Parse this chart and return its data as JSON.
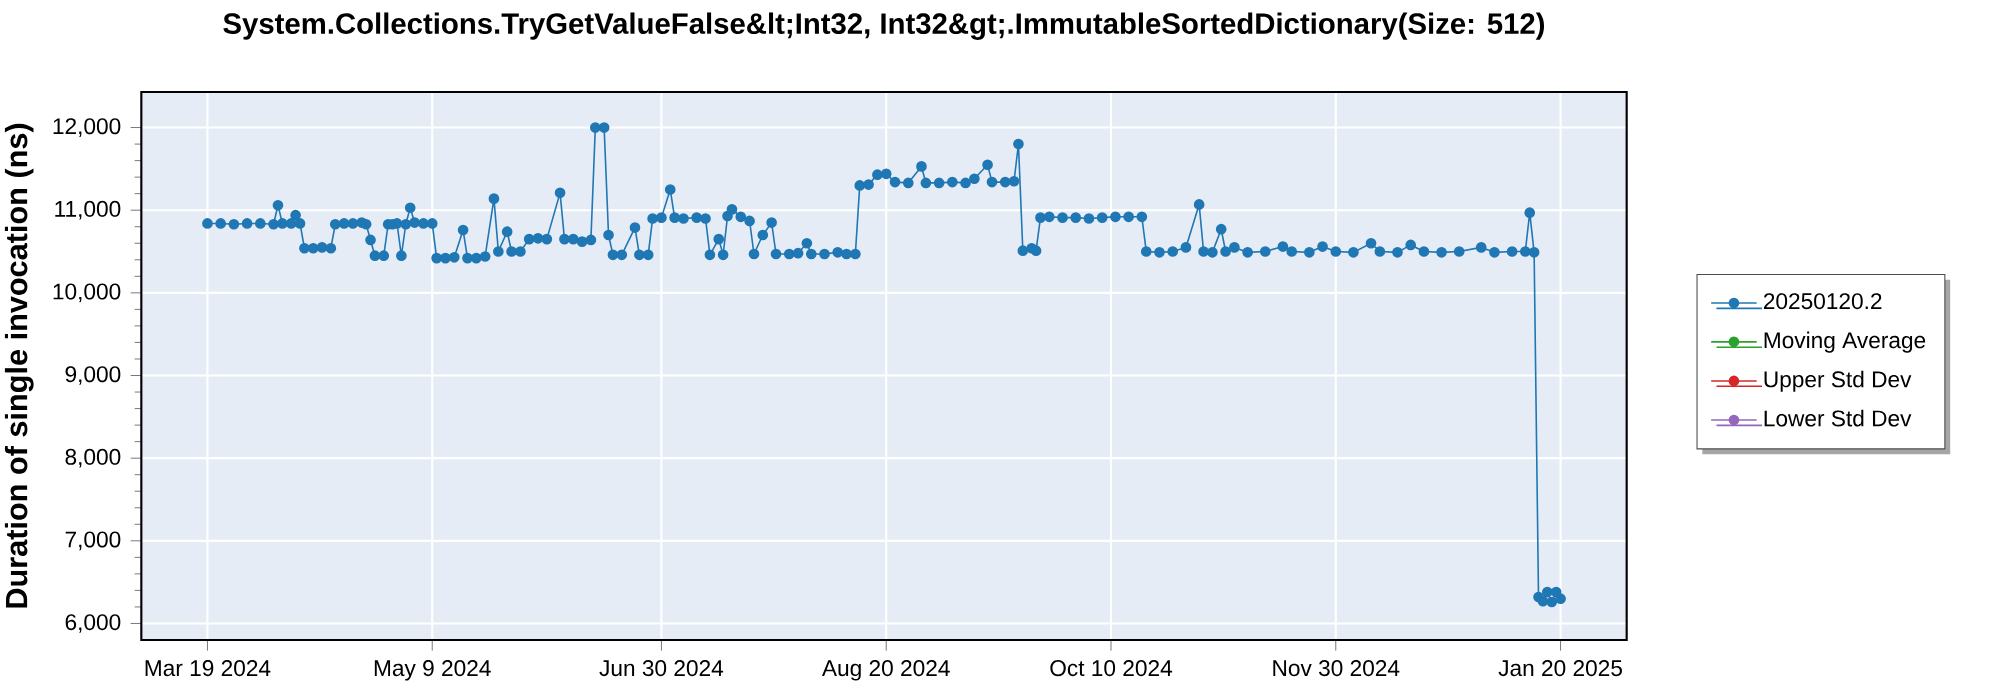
{
  "chart_data": {
    "type": "line",
    "title": "System.Collections.TryGetValueFalse&lt;Int32, Int32&gt;.ImmutableSortedDictionary(Size: 512)",
    "ylabel": "Duration of single invocation (ns)",
    "x": [
      "2024-03-19",
      "2024-03-22",
      "2024-03-25",
      "2024-03-28",
      "2024-03-31",
      "2024-04-03",
      "2024-04-04",
      "2024-04-05",
      "2024-04-07",
      "2024-04-08",
      "2024-04-09",
      "2024-04-10",
      "2024-04-12",
      "2024-04-14",
      "2024-04-16",
      "2024-04-17",
      "2024-04-19",
      "2024-04-21",
      "2024-04-23",
      "2024-04-24",
      "2024-04-25",
      "2024-04-26",
      "2024-04-28",
      "2024-04-29",
      "2024-04-30",
      "2024-05-01",
      "2024-05-02",
      "2024-05-03",
      "2024-05-04",
      "2024-05-05",
      "2024-05-07",
      "2024-05-09",
      "2024-05-10",
      "2024-05-12",
      "2024-05-14",
      "2024-05-16",
      "2024-05-17",
      "2024-05-19",
      "2024-05-21",
      "2024-05-23",
      "2024-05-24",
      "2024-05-26",
      "2024-05-27",
      "2024-05-29",
      "2024-05-31",
      "2024-06-02",
      "2024-06-04",
      "2024-06-07",
      "2024-06-08",
      "2024-06-10",
      "2024-06-12",
      "2024-06-14",
      "2024-06-15",
      "2024-06-17",
      "2024-06-18",
      "2024-06-19",
      "2024-06-21",
      "2024-06-24",
      "2024-06-25",
      "2024-06-27",
      "2024-06-28",
      "2024-06-30",
      "2024-07-02",
      "2024-07-03",
      "2024-07-05",
      "2024-07-08",
      "2024-07-10",
      "2024-07-11",
      "2024-07-13",
      "2024-07-14",
      "2024-07-15",
      "2024-07-16",
      "2024-07-18",
      "2024-07-20",
      "2024-07-21",
      "2024-07-23",
      "2024-07-25",
      "2024-07-26",
      "2024-07-29",
      "2024-07-31",
      "2024-08-02",
      "2024-08-03",
      "2024-08-06",
      "2024-08-09",
      "2024-08-11",
      "2024-08-13",
      "2024-08-14",
      "2024-08-16",
      "2024-08-18",
      "2024-08-20",
      "2024-08-22",
      "2024-08-25",
      "2024-08-28",
      "2024-08-29",
      "2024-09-01",
      "2024-09-04",
      "2024-09-07",
      "2024-09-09",
      "2024-09-12",
      "2024-09-13",
      "2024-09-16",
      "2024-09-18",
      "2024-09-19",
      "2024-09-20",
      "2024-09-22",
      "2024-09-23",
      "2024-09-24",
      "2024-09-26",
      "2024-09-29",
      "2024-10-02",
      "2024-10-05",
      "2024-10-08",
      "2024-10-11",
      "2024-10-14",
      "2024-10-17",
      "2024-10-18",
      "2024-10-21",
      "2024-10-24",
      "2024-10-27",
      "2024-10-30",
      "2024-10-31",
      "2024-11-02",
      "2024-11-04",
      "2024-11-05",
      "2024-11-07",
      "2024-11-10",
      "2024-11-14",
      "2024-11-18",
      "2024-11-20",
      "2024-11-24",
      "2024-11-27",
      "2024-11-30",
      "2024-12-04",
      "2024-12-08",
      "2024-12-10",
      "2024-12-14",
      "2024-12-17",
      "2024-12-20",
      "2024-12-24",
      "2024-12-28",
      "2025-01-02",
      "2025-01-05",
      "2025-01-09",
      "2025-01-12",
      "2025-01-13",
      "2025-01-14",
      "2025-01-15",
      "2025-01-16",
      "2025-01-17",
      "2025-01-18",
      "2025-01-19",
      "2025-01-20"
    ],
    "series": [
      {
        "name": "20250120.2",
        "color": "#1f77b4",
        "values": [
          10840,
          10840,
          10830,
          10840,
          10840,
          10830,
          11060,
          10840,
          10840,
          10940,
          10840,
          10540,
          10540,
          10550,
          10540,
          10830,
          10840,
          10840,
          10850,
          10830,
          10640,
          10450,
          10450,
          10830,
          10830,
          10840,
          10450,
          10830,
          11030,
          10850,
          10840,
          10840,
          10420,
          10420,
          10430,
          10760,
          10420,
          10420,
          10440,
          11140,
          10500,
          10740,
          10500,
          10500,
          10650,
          10660,
          10650,
          11210,
          10650,
          10650,
          10620,
          10640,
          12000,
          12000,
          10700,
          10460,
          10460,
          10790,
          10460,
          10460,
          10900,
          10910,
          11250,
          10910,
          10900,
          10910,
          10900,
          10460,
          10650,
          10460,
          10930,
          11010,
          10920,
          10870,
          10470,
          10700,
          10850,
          10470,
          10470,
          10480,
          10600,
          10470,
          10470,
          10490,
          10470,
          10470,
          11300,
          11310,
          11430,
          11440,
          11340,
          11330,
          11530,
          11330,
          11330,
          11340,
          11330,
          11380,
          11550,
          11340,
          11340,
          11350,
          11800,
          10510,
          10540,
          10510,
          10910,
          10920,
          10910,
          10910,
          10900,
          10910,
          10920,
          10920,
          10920,
          10500,
          10490,
          10500,
          10550,
          11070,
          10500,
          10490,
          10770,
          10500,
          10550,
          10490,
          10500,
          10560,
          10500,
          10490,
          10560,
          10500,
          10490,
          10600,
          10500,
          10490,
          10580,
          10500,
          10490,
          10500,
          10550,
          10490,
          10500,
          10500,
          10970,
          10490,
          6320,
          6270,
          6380,
          6260,
          6380,
          6300
        ]
      },
      {
        "name": "Moving Average",
        "color": "#2ca02c",
        "values": [
          null,
          null,
          null,
          null,
          null,
          null,
          null,
          null,
          null,
          null,
          null,
          null,
          null,
          null,
          null,
          null,
          null,
          null,
          null,
          null,
          null,
          null,
          null,
          null,
          null,
          null,
          null,
          null,
          null,
          null,
          null,
          null,
          null,
          null,
          null,
          null,
          null,
          null,
          null,
          null,
          null,
          null,
          null,
          null,
          null,
          null,
          null,
          null,
          null,
          null,
          null,
          null,
          null,
          null,
          null,
          null,
          null,
          null,
          null,
          null,
          null,
          null,
          null,
          null,
          null,
          null,
          null,
          null,
          null,
          null,
          null,
          null,
          null,
          null,
          null,
          null,
          null,
          null,
          null,
          null,
          null,
          null,
          null,
          null,
          null,
          null,
          null,
          null,
          null,
          null,
          null,
          null,
          null,
          null,
          null,
          null,
          null,
          null,
          null,
          null,
          null,
          null,
          null,
          null,
          null,
          null,
          null,
          null,
          null,
          null,
          null,
          null,
          null,
          null,
          null,
          null,
          null,
          null,
          null,
          null,
          null,
          null,
          null,
          null,
          null,
          null,
          null,
          null,
          null,
          null,
          null,
          null,
          null,
          null,
          null,
          null,
          null,
          null,
          null,
          null,
          null,
          null,
          null,
          null,
          null,
          null,
          null,
          null,
          null,
          null,
          null,
          null
        ]
      },
      {
        "name": "Upper Std Dev",
        "color": "#d62728",
        "values": [
          null,
          null,
          null,
          null,
          null,
          null,
          null,
          null,
          null,
          null,
          null,
          null,
          null,
          null,
          null,
          null,
          null,
          null,
          null,
          null,
          null,
          null,
          null,
          null,
          null,
          null,
          null,
          null,
          null,
          null,
          null,
          null,
          null,
          null,
          null,
          null,
          null,
          null,
          null,
          null,
          null,
          null,
          null,
          null,
          null,
          null,
          null,
          null,
          null,
          null,
          null,
          null,
          null,
          null,
          null,
          null,
          null,
          null,
          null,
          null,
          null,
          null,
          null,
          null,
          null,
          null,
          null,
          null,
          null,
          null,
          null,
          null,
          null,
          null,
          null,
          null,
          null,
          null,
          null,
          null,
          null,
          null,
          null,
          null,
          null,
          null,
          null,
          null,
          null,
          null,
          null,
          null,
          null,
          null,
          null,
          null,
          null,
          null,
          null,
          null,
          null,
          null,
          null,
          null,
          null,
          null,
          null,
          null,
          null,
          null,
          null,
          null,
          null,
          null,
          null,
          null,
          null,
          null,
          null,
          null,
          null,
          null,
          null,
          null,
          null,
          null,
          null,
          null,
          null,
          null,
          null,
          null,
          null,
          null,
          null,
          null,
          null,
          null,
          null,
          null,
          null,
          null,
          null,
          null,
          null,
          null,
          null,
          null,
          null,
          null,
          null,
          null
        ]
      },
      {
        "name": "Lower Std Dev",
        "color": "#9467bd",
        "values": [
          null,
          null,
          null,
          null,
          null,
          null,
          null,
          null,
          null,
          null,
          null,
          null,
          null,
          null,
          null,
          null,
          null,
          null,
          null,
          null,
          null,
          null,
          null,
          null,
          null,
          null,
          null,
          null,
          null,
          null,
          null,
          null,
          null,
          null,
          null,
          null,
          null,
          null,
          null,
          null,
          null,
          null,
          null,
          null,
          null,
          null,
          null,
          null,
          null,
          null,
          null,
          null,
          null,
          null,
          null,
          null,
          null,
          null,
          null,
          null,
          null,
          null,
          null,
          null,
          null,
          null,
          null,
          null,
          null,
          null,
          null,
          null,
          null,
          null,
          null,
          null,
          null,
          null,
          null,
          null,
          null,
          null,
          null,
          null,
          null,
          null,
          null,
          null,
          null,
          null,
          null,
          null,
          null,
          null,
          null,
          null,
          null,
          null,
          null,
          null,
          null,
          null,
          null,
          null,
          null,
          null,
          null,
          null,
          null,
          null,
          null,
          null,
          null,
          null,
          null,
          null,
          null,
          null,
          null,
          null,
          null,
          null,
          null,
          null,
          null,
          null,
          null,
          null,
          null,
          null,
          null,
          null,
          null,
          null,
          null,
          null,
          null,
          null,
          null,
          null,
          null,
          null,
          null,
          null,
          null,
          null,
          null,
          null,
          null,
          null,
          null,
          null
        ]
      }
    ],
    "xlim": [
      "2024-03-04",
      "2025-02-04"
    ],
    "xticks": [
      {
        "value": "2024-03-19",
        "label": "Mar 19 2024"
      },
      {
        "value": "2024-05-09",
        "label": "May 9 2024"
      },
      {
        "value": "2024-06-30",
        "label": "Jun 30 2024"
      },
      {
        "value": "2024-08-20",
        "label": "Aug 20 2024"
      },
      {
        "value": "2024-10-10",
        "label": "Oct 10 2024"
      },
      {
        "value": "2024-11-30",
        "label": "Nov 30 2024"
      },
      {
        "value": "2025-01-20",
        "label": "Jan 20 2025"
      }
    ],
    "ylim": [
      5800,
      12430
    ],
    "yticks": [
      {
        "value": 6000,
        "label": "6,000"
      },
      {
        "value": 7000,
        "label": "7,000"
      },
      {
        "value": 8000,
        "label": "8,000"
      },
      {
        "value": 9000,
        "label": "9,000"
      },
      {
        "value": 10000,
        "label": "10,000"
      },
      {
        "value": 11000,
        "label": "11,000"
      },
      {
        "value": 12000,
        "label": "12,000"
      }
    ],
    "grid": true,
    "legend": "right",
    "marker": "circle",
    "line_style": "solid"
  }
}
